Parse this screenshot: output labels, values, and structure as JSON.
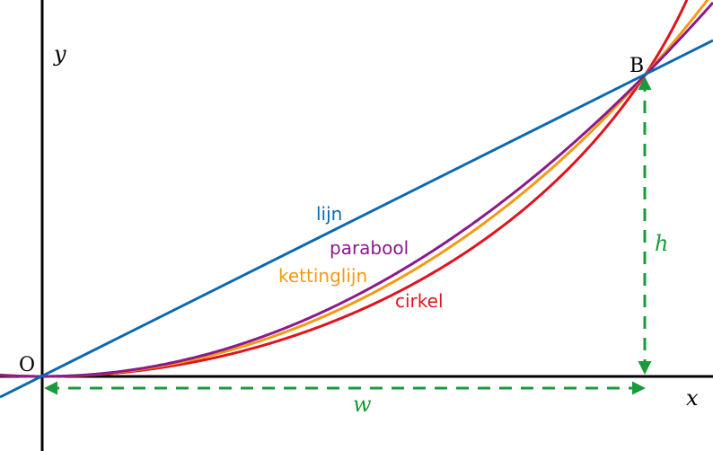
{
  "axes": {
    "x_label": "x",
    "y_label": "y"
  },
  "points": {
    "origin": "O",
    "end": "B"
  },
  "dimensions": {
    "width_label": "w",
    "height_label": "h"
  },
  "curves": [
    {
      "key": "lijn",
      "label": "lijn",
      "color": "#0a6aad"
    },
    {
      "key": "parabool",
      "label": "parabool",
      "color": "#8b1a8c"
    },
    {
      "key": "kettinglijn",
      "label": "kettinglijn",
      "color": "#f39a12"
    },
    {
      "key": "cirkel",
      "label": "cirkel",
      "color": "#e0141e"
    }
  ],
  "colors": {
    "axis": "#000000",
    "dimension": "#1a9a3c"
  }
}
